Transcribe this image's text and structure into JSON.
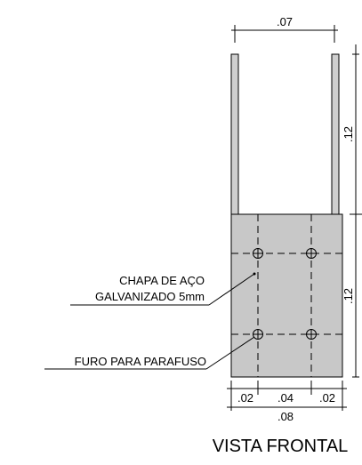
{
  "dimensions": {
    "top_width": ".07",
    "bottom_d1": ".02",
    "bottom_d2": ".04",
    "bottom_d3": ".02",
    "bottom_total": ".08",
    "right_upper": ".12",
    "right_lower": ".12"
  },
  "labels": {
    "plate_line1": "CHAPA DE AÇO",
    "plate_line2": "GALVANIZADO 5mm",
    "hole": "FURO PARA PARAFUSO"
  },
  "title": "VISTA FRONTAL",
  "colors": {
    "plate_fill": "#c8c8c8",
    "prong_fill": "#cfcfcf",
    "line": "#000000"
  }
}
